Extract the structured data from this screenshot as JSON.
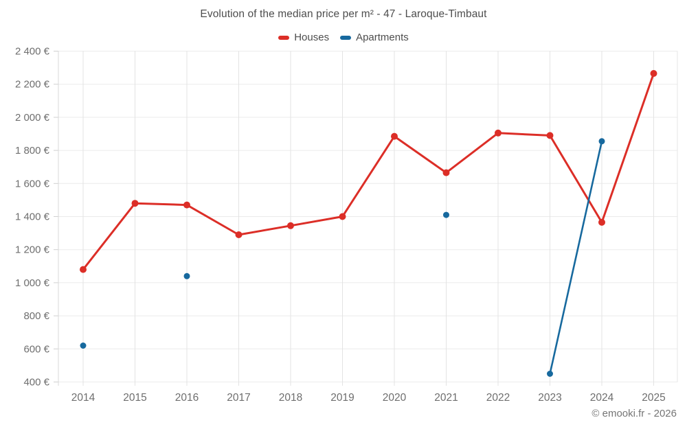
{
  "chart_data": {
    "type": "line",
    "title": "Evolution of the median price per m² - 47 - Laroque-Timbaut",
    "x": [
      "2014",
      "2015",
      "2016",
      "2017",
      "2018",
      "2019",
      "2020",
      "2021",
      "2022",
      "2023",
      "2024",
      "2025"
    ],
    "series": [
      {
        "name": "Houses",
        "color": "#dc2e27",
        "values": [
          1080,
          1480,
          1470,
          1290,
          1345,
          1400,
          1885,
          1665,
          1905,
          1890,
          1365,
          2265
        ]
      },
      {
        "name": "Apartments",
        "color": "#17699e",
        "values": [
          620,
          null,
          1040,
          null,
          null,
          null,
          null,
          1410,
          null,
          450,
          1855,
          null
        ]
      }
    ],
    "ylabel": "",
    "xlabel": "",
    "ylim": [
      400,
      2400
    ],
    "ytick_step": 200,
    "ytick_labels": [
      "400 €",
      "600 €",
      "800 €",
      "1 000 €",
      "1 200 €",
      "1 400 €",
      "1 600 €",
      "1 800 €",
      "2 000 €",
      "2 200 €",
      "2 400 €"
    ],
    "grid": true,
    "legend_position": "top",
    "currency_suffix": " €"
  },
  "footer": {
    "credit": "© emooki.fr - 2026"
  }
}
